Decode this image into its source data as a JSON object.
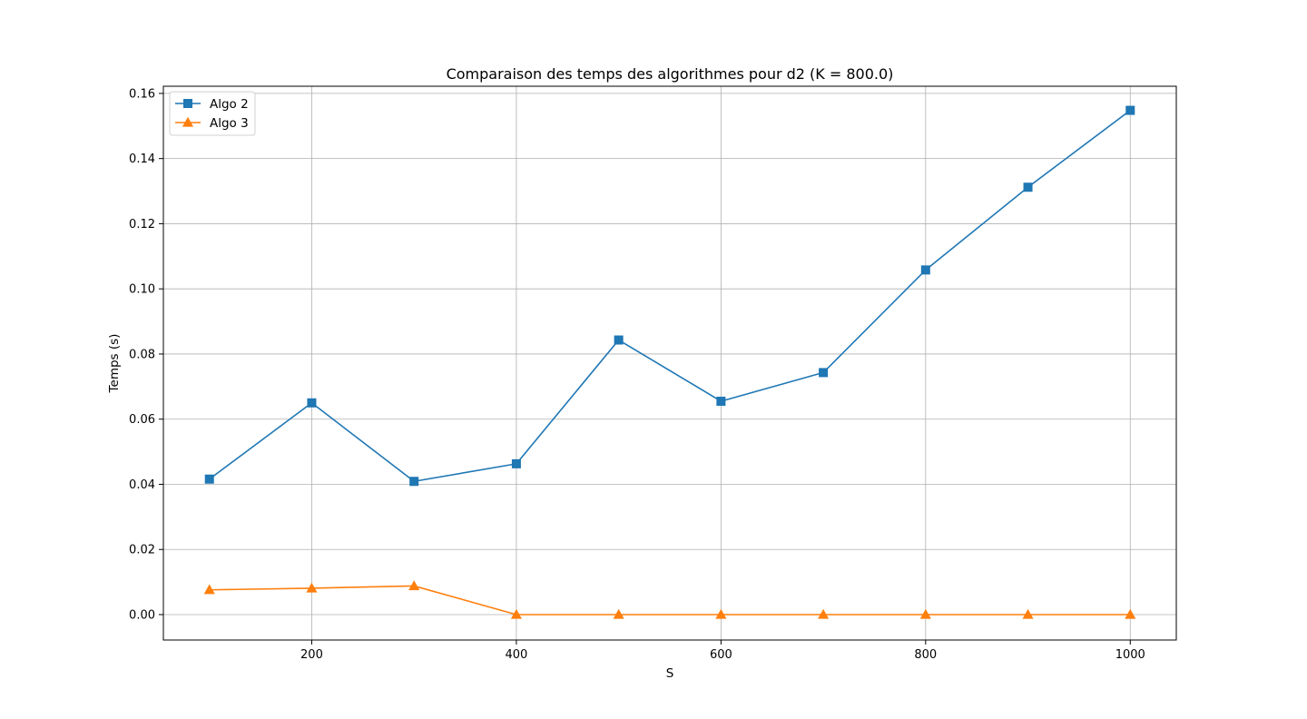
{
  "chart_data": {
    "type": "line",
    "title": "Comparaison des temps des algorithmes pour d2 (K = 800.0)",
    "xlabel": "S",
    "ylabel": "Temps (s)",
    "x": [
      100,
      200,
      300,
      400,
      500,
      600,
      700,
      800,
      900,
      1000
    ],
    "xlim": [
      55,
      1045
    ],
    "ylim": [
      -0.0078,
      0.1622
    ],
    "xticks": [
      200,
      400,
      600,
      800,
      1000
    ],
    "xtick_labels": [
      "200",
      "400",
      "600",
      "800",
      "1000"
    ],
    "yticks": [
      0.0,
      0.02,
      0.04,
      0.06,
      0.08,
      0.1,
      0.12,
      0.14,
      0.16
    ],
    "ytick_labels": [
      "0.00",
      "0.02",
      "0.04",
      "0.06",
      "0.08",
      "0.10",
      "0.12",
      "0.14",
      "0.16"
    ],
    "grid": true,
    "legend_position": "top-left",
    "series": [
      {
        "name": "Algo 2",
        "color": "#1f77b4",
        "marker": "square",
        "values": [
          0.0416,
          0.065,
          0.0409,
          0.0463,
          0.0843,
          0.0655,
          0.0743,
          0.1058,
          0.1312,
          0.1548
        ]
      },
      {
        "name": "Algo 3",
        "color": "#ff7f0e",
        "marker": "triangle",
        "values": [
          0.0076,
          0.0081,
          0.0088,
          0.0,
          0.0,
          0.0,
          0.0,
          0.0,
          0.0,
          0.0
        ]
      }
    ]
  }
}
